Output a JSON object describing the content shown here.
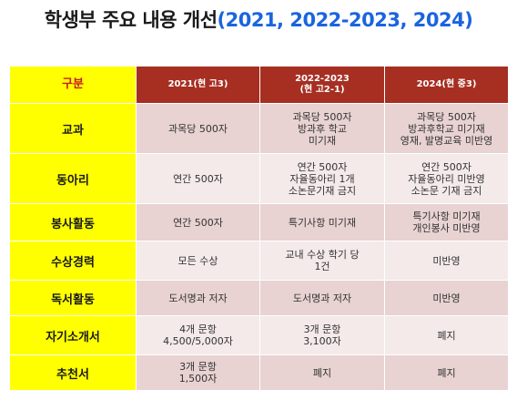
{
  "title": {
    "korean": "학생부 주요 내용 개선",
    "years": "(2021, 2022-2023, 2024)"
  },
  "table": {
    "header": {
      "corner": "구분",
      "col1": "2021(현 고3)",
      "col2_line1": "2022-2023",
      "col2_line2": "(현 고2-1)",
      "col3": "2024(현 중3)"
    },
    "rows": [
      {
        "label": "교과",
        "c1": [
          "과목당 500자"
        ],
        "c2": [
          "과목당 500자",
          "방과후 학교",
          "미기재"
        ],
        "c3": [
          "과목당 500자",
          "방과후학교 미기재",
          "영재, 발명교육 미반영"
        ]
      },
      {
        "label": "동아리",
        "c1": [
          "연간 500자"
        ],
        "c2": [
          "연간 500자",
          "자율동아리 1개",
          "소논문기재 금지"
        ],
        "c3": [
          "연간 500자",
          "자율동아리 미반영",
          "소논문 기재 금지"
        ]
      },
      {
        "label": "봉사활동",
        "c1": [
          "연간 500자"
        ],
        "c2": [
          "특기사항 미기재"
        ],
        "c3": [
          "특기사항 미기재",
          "개인봉사 미반영"
        ]
      },
      {
        "label": "수상경력",
        "c1": [
          "모든 수상"
        ],
        "c2": [
          "교내 수상 학기 당",
          "1건"
        ],
        "c3": [
          "미반영"
        ]
      },
      {
        "label": "독서활동",
        "c1": [
          "도서명과 저자"
        ],
        "c2": [
          "도서명과 저자"
        ],
        "c3": [
          "미반영"
        ]
      },
      {
        "label": "자기소개서",
        "c1": [
          "4개 문항",
          "4,500/5,000자"
        ],
        "c2": [
          "3개 문항",
          "3,100자"
        ],
        "c3": [
          "폐지"
        ]
      },
      {
        "label": "추천서",
        "c1": [
          "3개 문항",
          "1,500자"
        ],
        "c2": [
          "폐지"
        ],
        "c3": [
          "폐지"
        ]
      }
    ]
  },
  "colors": {
    "title_blue": "#1a64e0",
    "header_red": "#a62f22",
    "rowhead_yellow": "#ffff00",
    "corner_text_red": "#c81e1e",
    "row_pink_dark": "#e8d2d2",
    "row_pink_light": "#f4eaea"
  }
}
